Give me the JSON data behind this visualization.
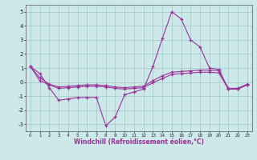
{
  "xlabel": "Windchill (Refroidissement éolien,°C)",
  "x": [
    0,
    1,
    2,
    3,
    4,
    5,
    6,
    7,
    8,
    9,
    10,
    11,
    12,
    13,
    14,
    15,
    16,
    17,
    18,
    19,
    20,
    21,
    22,
    23
  ],
  "line1": [
    1.1,
    0.6,
    -0.4,
    -1.3,
    -1.2,
    -1.1,
    -1.1,
    -1.1,
    -3.1,
    -2.5,
    -0.9,
    -0.7,
    -0.5,
    1.1,
    3.1,
    5.0,
    4.5,
    3.0,
    2.5,
    1.0,
    0.9,
    -0.5,
    -0.5,
    -0.2
  ],
  "line2": [
    1.1,
    0.3,
    -0.15,
    -0.35,
    -0.3,
    -0.25,
    -0.2,
    -0.2,
    -0.25,
    -0.35,
    -0.4,
    -0.35,
    -0.3,
    0.1,
    0.45,
    0.7,
    0.75,
    0.8,
    0.85,
    0.85,
    0.8,
    -0.45,
    -0.45,
    -0.15
  ],
  "line3": [
    1.1,
    0.1,
    -0.2,
    -0.45,
    -0.4,
    -0.35,
    -0.3,
    -0.3,
    -0.35,
    -0.45,
    -0.5,
    -0.45,
    -0.4,
    -0.05,
    0.25,
    0.55,
    0.6,
    0.65,
    0.7,
    0.7,
    0.65,
    -0.5,
    -0.5,
    -0.2
  ],
  "line_color": "#993399",
  "bg_color": "#cce8e8",
  "grid_color": "#aacccc",
  "ylim": [
    -3.5,
    5.5
  ],
  "xlim": [
    -0.5,
    23.5
  ],
  "yticks": [
    -3,
    -2,
    -1,
    0,
    1,
    2,
    3,
    4,
    5
  ],
  "xticks": [
    0,
    1,
    2,
    3,
    4,
    5,
    6,
    7,
    8,
    9,
    10,
    11,
    12,
    13,
    14,
    15,
    16,
    17,
    18,
    19,
    20,
    21,
    22,
    23
  ]
}
